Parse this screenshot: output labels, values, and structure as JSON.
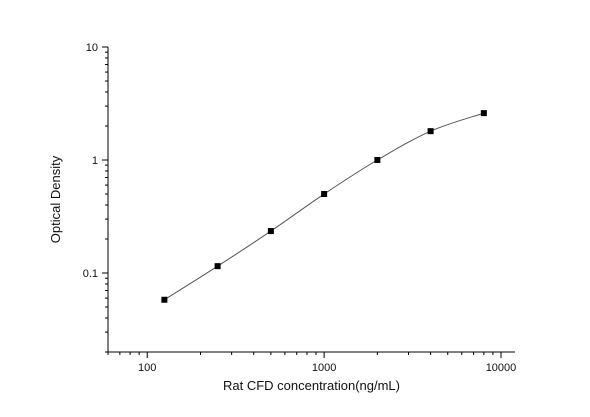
{
  "chart_data": {
    "type": "scatter",
    "title": "",
    "xlabel": "Rat CFD concentration(ng/mL)",
    "ylabel": "Optical Density",
    "x_scale": "log",
    "y_scale": "log",
    "xlim": [
      60,
      12000
    ],
    "ylim": [
      0.02,
      10
    ],
    "x_ticks": [
      100,
      1000,
      10000
    ],
    "x_tick_labels": [
      "100",
      "1000",
      "10000"
    ],
    "y_ticks": [
      0.1,
      1,
      10
    ],
    "y_tick_labels": [
      "0.1",
      "1",
      "10"
    ],
    "grid": false,
    "legend": "none",
    "series": [
      {
        "marker": "square",
        "fit_curve": true,
        "x": [
          125,
          250,
          500,
          1000,
          2000,
          4000,
          8000
        ],
        "y": [
          0.058,
          0.115,
          0.235,
          0.5,
          1.0,
          1.8,
          2.6
        ]
      }
    ],
    "colors": {
      "marker": "#000000",
      "curve": "#555555",
      "axis": "#000000"
    }
  }
}
